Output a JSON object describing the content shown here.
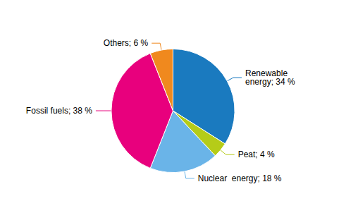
{
  "chart_data": {
    "type": "pie",
    "values": [
      34,
      4,
      18,
      38,
      6
    ],
    "value_labels": [
      "Renewable\nenergy; 34 %",
      "Peat; 4 %",
      "Nuclear  energy; 18 %",
      "Fossil fuels; 38 %",
      "Others; 6 %"
    ],
    "colors": [
      "#1a7abf",
      "#b5cc18",
      "#6ab4e8",
      "#e8007d",
      "#f0891e"
    ],
    "data_labels": true
  }
}
